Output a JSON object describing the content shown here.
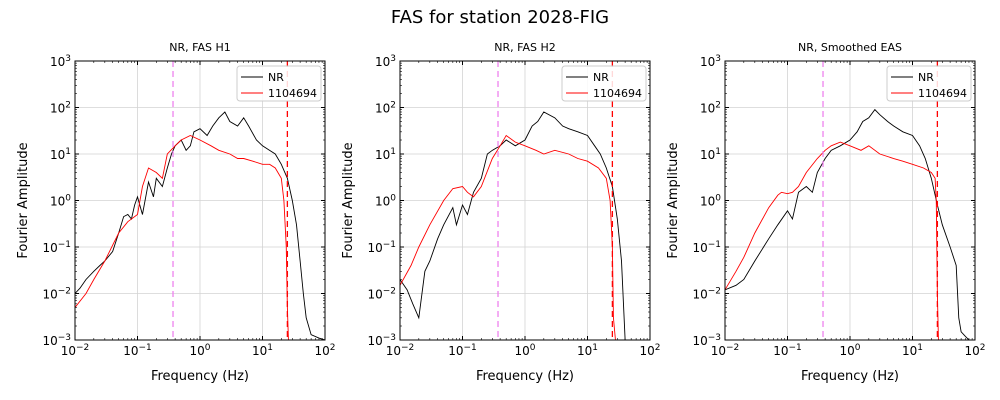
{
  "figure": {
    "title": "FAS for station 2028-FIG"
  },
  "chart_data": [
    {
      "type": "line",
      "title": "NR, FAS H1",
      "xlabel": "Frequency (Hz)",
      "ylabel": "Fourier Amplitude",
      "xscale": "log",
      "yscale": "log",
      "xlim": [
        0.01,
        100
      ],
      "ylim": [
        0.001,
        1000
      ],
      "grid": true,
      "legend": "top-right",
      "vlines": [
        {
          "x": 0.37,
          "color": "#ee82ee"
        },
        {
          "x": 25,
          "color": "#ff0000"
        }
      ],
      "series": [
        {
          "name": "NR",
          "color": "#000000",
          "x": [
            0.01,
            0.012,
            0.015,
            0.02,
            0.025,
            0.03,
            0.04,
            0.05,
            0.06,
            0.07,
            0.08,
            0.09,
            0.1,
            0.12,
            0.15,
            0.18,
            0.2,
            0.25,
            0.3,
            0.35,
            0.4,
            0.5,
            0.6,
            0.7,
            0.8,
            1,
            1.3,
            1.6,
            2,
            2.5,
            3,
            4,
            5,
            6,
            8,
            10,
            13,
            16,
            20,
            25,
            30,
            35,
            40,
            45,
            50,
            60,
            80,
            100
          ],
          "y": [
            0.01,
            0.013,
            0.02,
            0.03,
            0.04,
            0.05,
            0.08,
            0.2,
            0.45,
            0.5,
            0.4,
            0.8,
            1.2,
            0.5,
            2.5,
            1.2,
            3,
            2,
            5,
            10,
            15,
            20,
            12,
            15,
            30,
            35,
            25,
            40,
            60,
            80,
            50,
            40,
            60,
            40,
            20,
            15,
            12,
            10,
            6,
            3,
            1,
            0.3,
            0.05,
            0.01,
            0.003,
            0.0013,
            0.0011,
            0.001
          ]
        },
        {
          "name": "1104694",
          "color": "#ff0000",
          "x": [
            0.01,
            0.015,
            0.02,
            0.03,
            0.05,
            0.07,
            0.1,
            0.12,
            0.15,
            0.2,
            0.25,
            0.3,
            0.4,
            0.5,
            0.7,
            1,
            1.5,
            2,
            3,
            4,
            5,
            7,
            10,
            13,
            16,
            20,
            22,
            24,
            25,
            26
          ],
          "y": [
            0.005,
            0.01,
            0.02,
            0.05,
            0.2,
            0.35,
            0.5,
            2,
            5,
            4,
            3,
            10,
            15,
            20,
            25,
            20,
            15,
            12,
            10,
            8,
            8,
            7,
            6,
            6,
            5,
            3,
            1,
            0.1,
            0.005,
            0.001
          ]
        }
      ]
    },
    {
      "type": "line",
      "title": "NR, FAS H2",
      "xlabel": "Frequency (Hz)",
      "ylabel": "Fourier Amplitude",
      "xscale": "log",
      "yscale": "log",
      "xlim": [
        0.01,
        100
      ],
      "ylim": [
        0.001,
        1000
      ],
      "grid": true,
      "legend": "top-right",
      "vlines": [
        {
          "x": 0.37,
          "color": "#ee82ee"
        },
        {
          "x": 25,
          "color": "#ff0000"
        }
      ],
      "series": [
        {
          "name": "NR",
          "color": "#000000",
          "x": [
            0.01,
            0.013,
            0.016,
            0.02,
            0.025,
            0.03,
            0.04,
            0.05,
            0.07,
            0.08,
            0.1,
            0.12,
            0.15,
            0.2,
            0.25,
            0.3,
            0.4,
            0.5,
            0.7,
            1,
            1.3,
            1.6,
            2,
            3,
            4,
            5,
            7,
            10,
            13,
            16,
            20,
            25,
            30,
            35,
            40
          ],
          "y": [
            0.02,
            0.012,
            0.006,
            0.003,
            0.03,
            0.05,
            0.15,
            0.3,
            0.7,
            0.3,
            0.8,
            0.5,
            1.5,
            3,
            10,
            12,
            15,
            20,
            15,
            20,
            40,
            50,
            80,
            60,
            40,
            35,
            30,
            25,
            15,
            10,
            5,
            2,
            0.4,
            0.05,
            0.001
          ]
        },
        {
          "name": "1104694",
          "color": "#ff0000",
          "x": [
            0.01,
            0.015,
            0.02,
            0.03,
            0.05,
            0.07,
            0.1,
            0.12,
            0.15,
            0.2,
            0.3,
            0.4,
            0.5,
            0.7,
            1,
            1.5,
            2,
            3,
            5,
            7,
            10,
            15,
            20,
            23,
            25,
            26,
            28
          ],
          "y": [
            0.015,
            0.04,
            0.1,
            0.3,
            1,
            1.8,
            2,
            1.5,
            1.2,
            2,
            8,
            15,
            25,
            18,
            15,
            12,
            10,
            12,
            10,
            8,
            7,
            5,
            3,
            1,
            0.1,
            0.003,
            0.001
          ]
        }
      ]
    },
    {
      "type": "line",
      "title": "NR, Smoothed EAS",
      "xlabel": "Frequency (Hz)",
      "ylabel": "Fourier Amplitude",
      "xscale": "log",
      "yscale": "log",
      "xlim": [
        0.01,
        100
      ],
      "ylim": [
        0.001,
        1000
      ],
      "grid": true,
      "legend": "top-right",
      "vlines": [
        {
          "x": 0.37,
          "color": "#ee82ee"
        },
        {
          "x": 25,
          "color": "#ff0000"
        }
      ],
      "series": [
        {
          "name": "NR",
          "color": "#000000",
          "x": [
            0.01,
            0.015,
            0.02,
            0.03,
            0.05,
            0.07,
            0.1,
            0.12,
            0.15,
            0.2,
            0.25,
            0.3,
            0.4,
            0.5,
            0.7,
            1,
            1.3,
            1.6,
            2,
            2.5,
            3,
            4,
            5,
            7,
            10,
            13,
            16,
            20,
            25,
            30,
            40,
            50,
            55,
            60,
            70,
            80,
            100
          ],
          "y": [
            0.012,
            0.015,
            0.02,
            0.05,
            0.15,
            0.3,
            0.6,
            0.4,
            1.5,
            2,
            1.5,
            4,
            8,
            12,
            15,
            20,
            30,
            50,
            60,
            90,
            70,
            50,
            40,
            30,
            25,
            15,
            8,
            3,
            0.8,
            0.3,
            0.1,
            0.04,
            0.003,
            0.0015,
            0.0012,
            0.001,
            0.001
          ]
        },
        {
          "name": "1104694",
          "color": "#ff0000",
          "x": [
            0.01,
            0.015,
            0.02,
            0.03,
            0.05,
            0.07,
            0.08,
            0.1,
            0.12,
            0.15,
            0.2,
            0.3,
            0.4,
            0.5,
            0.7,
            1,
            1.5,
            2,
            3,
            5,
            7,
            10,
            15,
            20,
            23,
            24,
            25,
            26
          ],
          "y": [
            0.012,
            0.03,
            0.06,
            0.2,
            0.7,
            1.3,
            1.5,
            1.4,
            1.5,
            2,
            4,
            8,
            12,
            15,
            18,
            15,
            12,
            15,
            10,
            8,
            7,
            6,
            5,
            4,
            3,
            1,
            0.01,
            0.001
          ]
        }
      ]
    }
  ]
}
